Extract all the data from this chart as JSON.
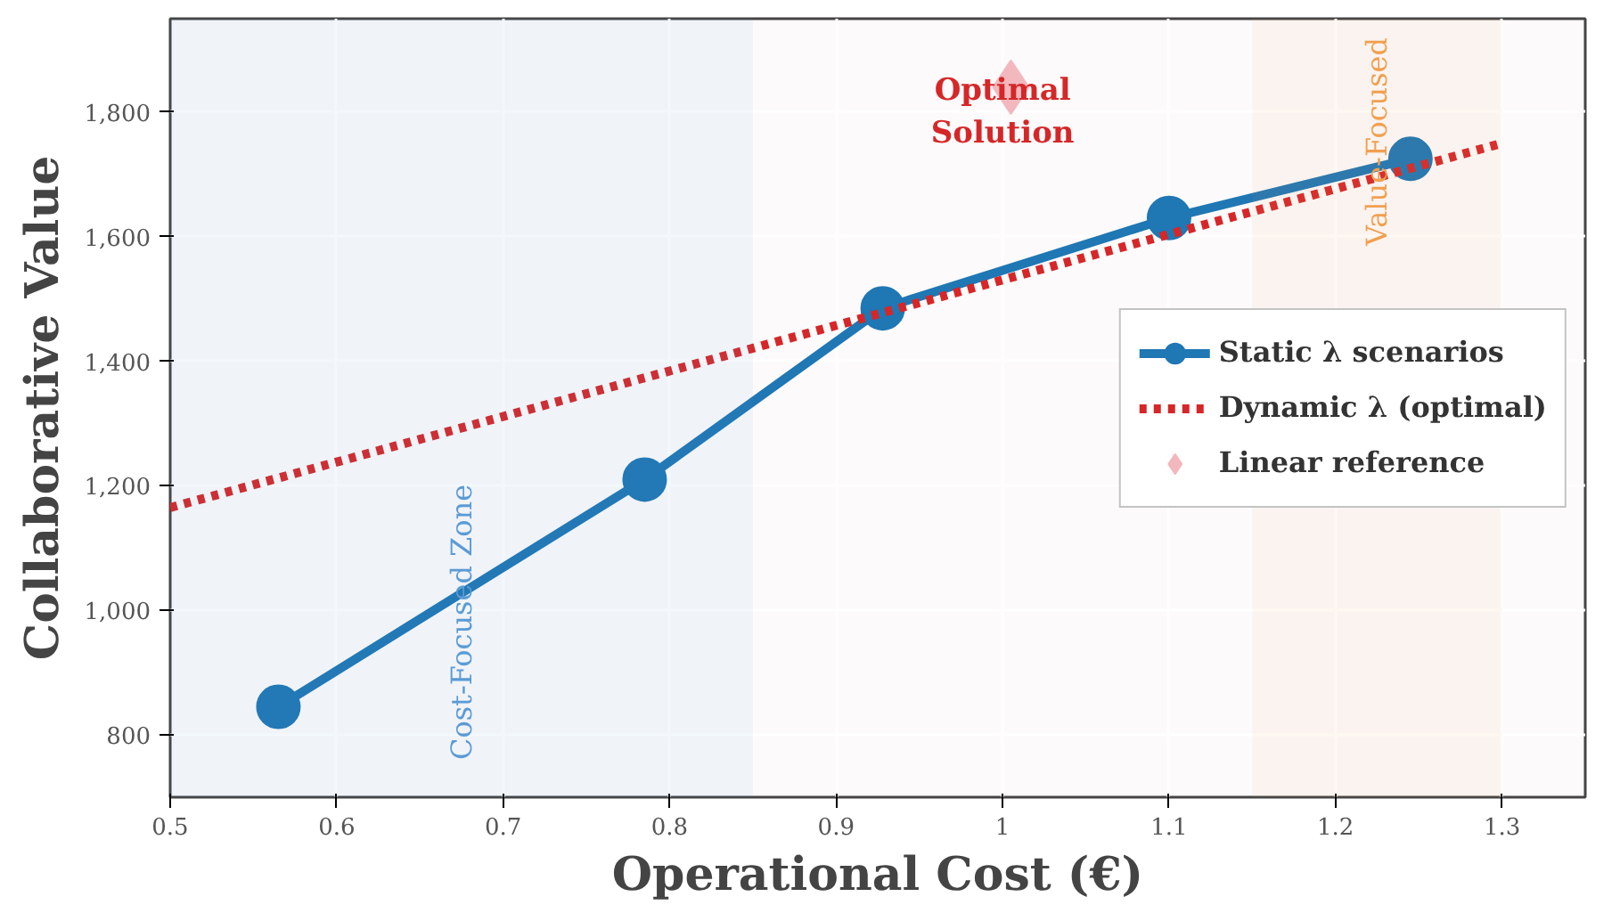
{
  "chart_data": {
    "type": "line",
    "xlabel": "Operational Cost (€)",
    "ylabel": "Collaborative Value",
    "xlim": [
      0.5,
      1.35
    ],
    "ylim": [
      700,
      1950
    ],
    "xticks": [
      0.5,
      0.6,
      0.7,
      0.8,
      0.9,
      1,
      1.1,
      1.2,
      1.3
    ],
    "yticks": [
      800,
      {
        "value": 1000,
        "label": "1,000"
      },
      {
        "value": 1200,
        "label": "1,200"
      },
      {
        "value": 1400,
        "label": "1,400"
      },
      {
        "value": 1600,
        "label": "1,600"
      },
      {
        "value": 1800,
        "label": "1,800"
      }
    ],
    "grid": true,
    "legend": "right",
    "series": [
      {
        "name": "Static λ scenarios",
        "color": "#1f77b4",
        "marker": "circle",
        "line_style": "solid",
        "x": [
          0.565,
          0.785,
          0.928,
          1.1,
          1.245
        ],
        "values": [
          845,
          1210,
          1485,
          1630,
          1725
        ]
      },
      {
        "name": "Dynamic λ (optimal)",
        "color": "#d62728",
        "marker": "none",
        "line_style": "dotted",
        "x": [
          0.5,
          1.3
        ],
        "values": [
          1165,
          1750
        ]
      },
      {
        "name": "Linear reference",
        "type": "scatter",
        "color": "#f2b8bd",
        "marker": "diamond",
        "x": [
          1.005
        ],
        "values": [
          1840
        ]
      }
    ],
    "bands": [
      {
        "axis": "x",
        "from": 0.5,
        "to": 0.85,
        "label": "Cost-Focused Zone",
        "color": "#5b9bd5"
      },
      {
        "axis": "x",
        "from": 1.15,
        "to": 1.3,
        "label": "Value-Focused",
        "color": "#f0a050"
      }
    ],
    "annotations": [
      {
        "text": "Optimal\nSolution",
        "x": 1.0,
        "y": 1800
      }
    ]
  }
}
